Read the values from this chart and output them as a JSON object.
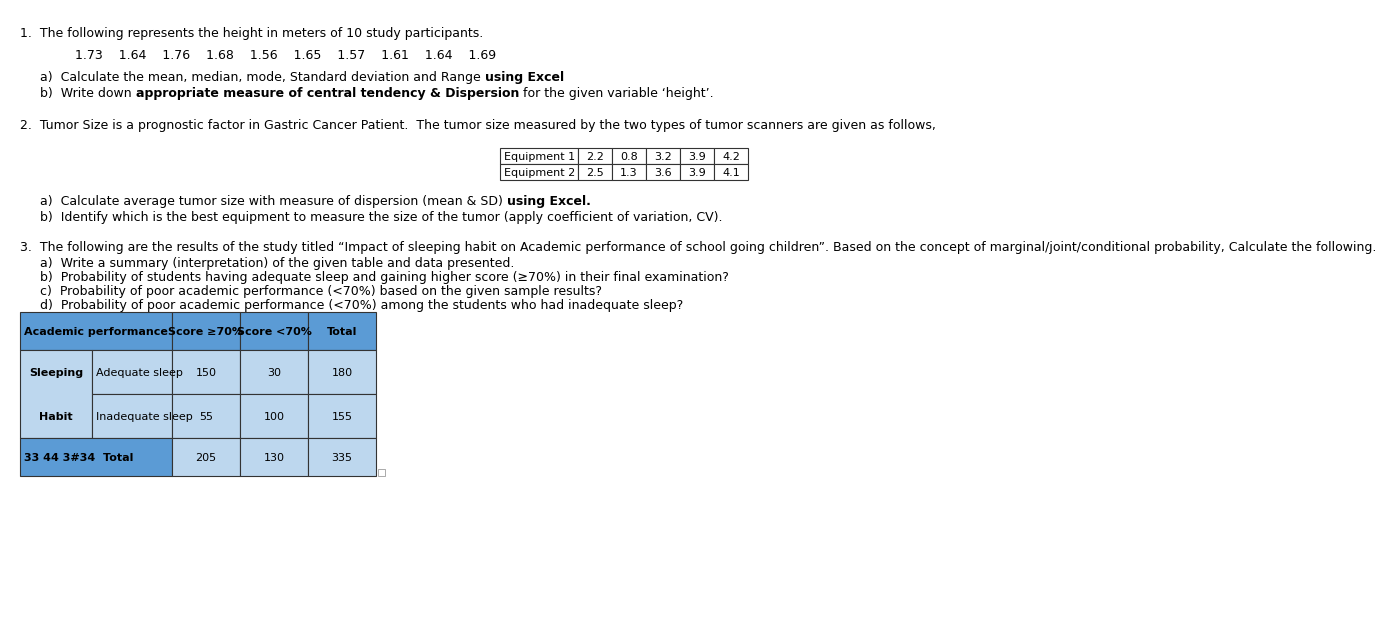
{
  "title_q1": "1.  The following represents the height in meters of 10 study participants.",
  "heights": "1.73    1.64    1.76    1.68    1.56    1.65    1.57    1.61    1.64    1.69",
  "q1a_normal": "a)  Calculate the mean, median, mode, Standard deviation and Range ",
  "q1a_bold": "using Excel",
  "q1b_pre": "b)  Write down ",
  "q1b_bold": "appropriate measure of central tendency & Dispersion",
  "q1b_post": " for the given variable ‘height’.",
  "title_q2": "2.  Tumor Size is a prognostic factor in Gastric Cancer Patient.  The tumor size measured by the two types of tumor scanners are given as follows,",
  "eq1_label": "Equipment 1",
  "eq1_values": [
    "2.2",
    "0.8",
    "3.2",
    "3.9",
    "4.2"
  ],
  "eq2_label": "Equipment 2",
  "eq2_values": [
    "2.5",
    "1.3",
    "3.6",
    "3.9",
    "4.1"
  ],
  "q2a_normal": "a)  Calculate average tumor size with measure of dispersion (mean & SD) ",
  "q2a_bold": "using Excel.",
  "q2b": "b)  Identify which is the best equipment to measure the size of the tumor (apply coefficient of variation, CV).",
  "title_q3": "3.  The following are the results of the study titled “Impact of sleeping habit on Academic performance of school going children”. Based on the concept of marginal/joint/conditional probability, Calculate the following.",
  "q3a": "a)  Write a summary (interpretation) of the given table and data presented.",
  "q3b": "b)  Probability of students having adequate sleep and gaining higher score (≥70%) in their final examination?",
  "q3c": "c)  Probability of poor academic performance (<70%) based on the given sample results?",
  "q3d": "d)  Probability of poor academic performance (<70%) among the students who had inadequate sleep?",
  "table_header_color": "#5b9bd5",
  "table_row_color": "#bdd7ee",
  "bg_color": "#ffffff",
  "font_size": 9,
  "font_size_small": 8
}
